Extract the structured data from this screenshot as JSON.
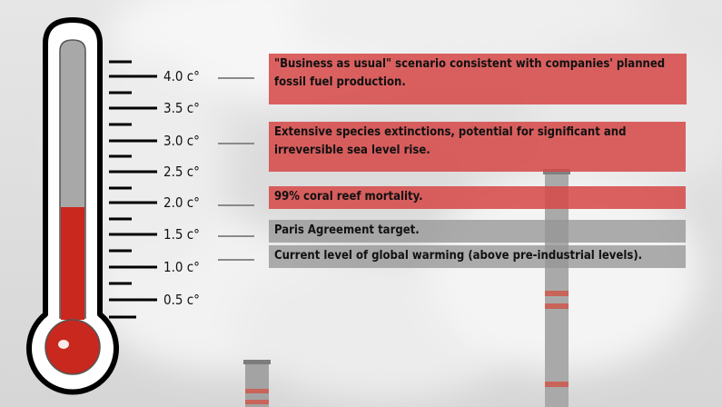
{
  "colors": {
    "mercury": "#c8281e",
    "red_box": "#d64848",
    "gray_box": "#969696"
  },
  "scale": {
    "labels": [
      "4.0 c°",
      "3.5 c°",
      "3.0 c°",
      "2.5 c°",
      "2.0 c°",
      "1.5 c°",
      "1.0 c°",
      "0.5 c°"
    ]
  },
  "scenarios": [
    {
      "temp": "4.0 c°",
      "text": "\"Business as usual\" scenario consistent with companies' planned fossil fuel production."
    },
    {
      "temp": "3.0 c°",
      "text": "Extensive species extinctions, potential for significant and irreversible sea level rise."
    },
    {
      "temp": "2.0 c°",
      "text": "99% coral reef mortality."
    },
    {
      "temp": "1.5 c°",
      "text": "Paris Agreement target."
    },
    {
      "temp": "1.0 c°",
      "text": "Current level of global warming (above pre-industrial levels)."
    }
  ]
}
